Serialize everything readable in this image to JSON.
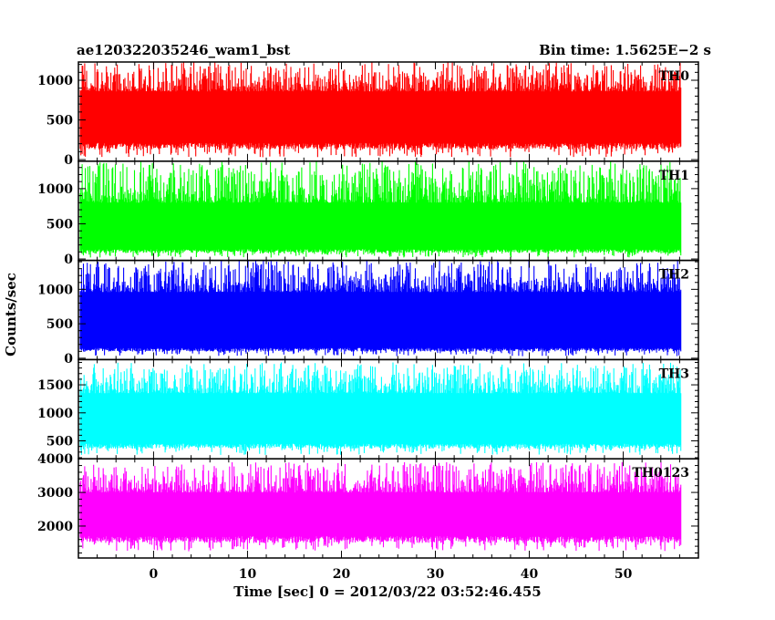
{
  "header": {
    "title": "ae120322035246_wam1_bst",
    "bin_time": "Bin time: 1.5625E−2 s"
  },
  "chart_data": {
    "type": "line",
    "title": "ae120322035246_wam1_bst",
    "subtitle": "Bin time: 1.5625E−2 s",
    "xlabel": "Time [sec] 0 = 2012/03/22 03:52:46.455",
    "ylabel": "Counts/sec",
    "xlim": [
      -8,
      58
    ],
    "x_data_range": [
      -7.9,
      56.2
    ],
    "bin_time": 0.015625,
    "x_ticks": [
      0,
      10,
      20,
      30,
      40,
      50
    ],
    "x_minor_step": 2,
    "grid": false,
    "legend": "none",
    "panels": [
      {
        "name": "TH0",
        "color": "#ff0000",
        "ylim": [
          -20,
          1230
        ],
        "y_ticks": [
          0,
          500,
          1000
        ],
        "y_minor_step": 100,
        "baseline_low": 210,
        "baseline_high": 860,
        "peak": 1230,
        "trough": 30
      },
      {
        "name": "TH1",
        "color": "#00ff00",
        "ylim": [
          -20,
          1390
        ],
        "y_ticks": [
          0,
          500,
          1000
        ],
        "y_minor_step": 100,
        "baseline_low": 140,
        "baseline_high": 800,
        "peak": 1390,
        "trough": 20
      },
      {
        "name": "TH2",
        "color": "#0000ff",
        "ylim": [
          -20,
          1420
        ],
        "y_ticks": [
          0,
          500,
          1000
        ],
        "y_minor_step": 100,
        "baseline_low": 150,
        "baseline_high": 960,
        "peak": 1420,
        "trough": 30
      },
      {
        "name": "TH3",
        "color": "#00ffff",
        "ylim": [
          180,
          1950
        ],
        "y_ticks": [
          500,
          1000,
          1500
        ],
        "y_minor_step": 100,
        "baseline_low": 450,
        "baseline_high": 1350,
        "peak": 1900,
        "trough": 250
      },
      {
        "name": "TH0123",
        "color": "#ff00ff",
        "ylim": [
          1050,
          4000
        ],
        "y_ticks": [
          2000,
          3000,
          4000
        ],
        "y_minor_step": 200,
        "baseline_low": 1700,
        "baseline_high": 3000,
        "peak": 3900,
        "trough": 1250
      }
    ]
  }
}
